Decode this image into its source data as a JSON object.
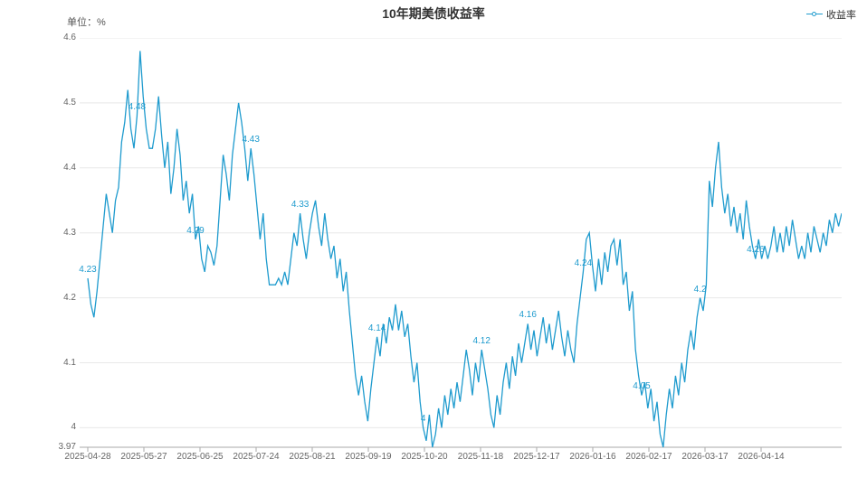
{
  "chart_data": {
    "type": "line",
    "title": "10年期美债收益率",
    "unit_label": "单位：%",
    "grid_color": "#e8e8e8",
    "axis_color": "#aaaaaa",
    "ylim": [
      3.97,
      4.6
    ],
    "y_ticks": [
      3.97,
      4.0,
      4.1,
      4.2,
      4.3,
      4.4,
      4.5,
      4.6
    ],
    "y_tick_labels": [
      "3.97",
      "4",
      "4.1",
      "4.2",
      "4.3",
      "4.4",
      "4.5",
      "4.6"
    ],
    "x_tick_labels": [
      "2025-04-28",
      "2025-05-27",
      "2025-06-25",
      "2025-07-24",
      "2025-08-21",
      "2025-09-19",
      "2025-10-20",
      "2025-11-18",
      "2025-12-17",
      "2026-01-16",
      "2026-02-17",
      "2026-03-17",
      "2026-04-14"
    ],
    "series": [
      {
        "name": "收益率",
        "color": "#1f9bce",
        "values": [
          4.23,
          4.19,
          4.17,
          4.21,
          4.26,
          4.31,
          4.36,
          4.33,
          4.3,
          4.35,
          4.37,
          4.44,
          4.47,
          4.52,
          4.46,
          4.43,
          4.48,
          4.58,
          4.51,
          4.46,
          4.43,
          4.43,
          4.46,
          4.51,
          4.45,
          4.4,
          4.44,
          4.36,
          4.4,
          4.46,
          4.42,
          4.35,
          4.38,
          4.33,
          4.36,
          4.29,
          4.31,
          4.26,
          4.24,
          4.28,
          4.27,
          4.25,
          4.28,
          4.35,
          4.42,
          4.39,
          4.35,
          4.42,
          4.46,
          4.5,
          4.47,
          4.43,
          4.38,
          4.43,
          4.39,
          4.34,
          4.29,
          4.33,
          4.26,
          4.22,
          4.22,
          4.22,
          4.23,
          4.22,
          4.24,
          4.22,
          4.26,
          4.3,
          4.28,
          4.33,
          4.29,
          4.26,
          4.3,
          4.33,
          4.35,
          4.31,
          4.28,
          4.33,
          4.29,
          4.26,
          4.28,
          4.23,
          4.26,
          4.21,
          4.24,
          4.18,
          4.13,
          4.08,
          4.05,
          4.08,
          4.04,
          4.01,
          4.06,
          4.1,
          4.14,
          4.11,
          4.16,
          4.13,
          4.17,
          4.15,
          4.19,
          4.15,
          4.18,
          4.14,
          4.16,
          4.11,
          4.07,
          4.1,
          4.04,
          4.0,
          3.98,
          4.02,
          3.97,
          3.99,
          4.03,
          4.0,
          4.05,
          4.02,
          4.06,
          4.03,
          4.07,
          4.04,
          4.08,
          4.12,
          4.09,
          4.05,
          4.1,
          4.07,
          4.12,
          4.09,
          4.06,
          4.02,
          4.0,
          4.05,
          4.02,
          4.07,
          4.1,
          4.06,
          4.11,
          4.08,
          4.13,
          4.1,
          4.13,
          4.16,
          4.12,
          4.15,
          4.11,
          4.14,
          4.17,
          4.13,
          4.16,
          4.12,
          4.15,
          4.18,
          4.14,
          4.11,
          4.15,
          4.12,
          4.1,
          4.16,
          4.2,
          4.24,
          4.29,
          4.3,
          4.25,
          4.21,
          4.26,
          4.22,
          4.27,
          4.24,
          4.28,
          4.29,
          4.25,
          4.29,
          4.22,
          4.24,
          4.18,
          4.21,
          4.12,
          4.08,
          4.05,
          4.07,
          4.03,
          4.06,
          4.01,
          4.04,
          3.99,
          3.97,
          4.02,
          4.06,
          4.03,
          4.08,
          4.05,
          4.1,
          4.07,
          4.12,
          4.15,
          4.12,
          4.17,
          4.2,
          4.18,
          4.22,
          4.38,
          4.34,
          4.4,
          4.44,
          4.37,
          4.33,
          4.36,
          4.31,
          4.34,
          4.3,
          4.33,
          4.29,
          4.35,
          4.31,
          4.28,
          4.26,
          4.29,
          4.26,
          4.28,
          4.26,
          4.28,
          4.31,
          4.27,
          4.3,
          4.27,
          4.31,
          4.28,
          4.32,
          4.29,
          4.26,
          4.28,
          4.26,
          4.3,
          4.27,
          4.31,
          4.29,
          4.27,
          4.3,
          4.28,
          4.32,
          4.3,
          4.33,
          4.31,
          4.33
        ]
      }
    ],
    "point_labels": [
      {
        "index": 0,
        "text": "4.23"
      },
      {
        "index": 16,
        "text": "4.48"
      },
      {
        "index": 35,
        "text": "4.29"
      },
      {
        "index": 53,
        "text": "4.43"
      },
      {
        "index": 69,
        "text": "4.33"
      },
      {
        "index": 94,
        "text": "4.14"
      },
      {
        "index": 109,
        "text": "4"
      },
      {
        "index": 128,
        "text": "4.12"
      },
      {
        "index": 143,
        "text": "4.16"
      },
      {
        "index": 161,
        "text": "4.24"
      },
      {
        "index": 180,
        "text": "4.05"
      },
      {
        "index": 199,
        "text": "4.2"
      },
      {
        "index": 217,
        "text": "4.26"
      }
    ]
  }
}
